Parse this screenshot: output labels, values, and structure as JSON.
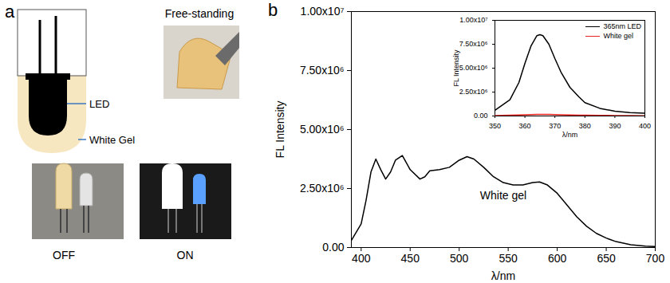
{
  "panel_a": {
    "letter": "a",
    "diagram_labels": [
      "LED",
      "White Gel"
    ],
    "photo_title": "Free-standing",
    "photo_labels": [
      "OFF",
      "ON"
    ]
  },
  "panel_b": {
    "letter": "b"
  },
  "chart_data": [
    {
      "type": "line",
      "color": "#000000",
      "x_label": "λ/nm",
      "y_label": "FL Intensity",
      "x": [
        390,
        400,
        405,
        410,
        415,
        420,
        425,
        430,
        435,
        442,
        450,
        460,
        465,
        470,
        480,
        490,
        500,
        508,
        515,
        525,
        535,
        545,
        555,
        565,
        575,
        582,
        590,
        600,
        610,
        620,
        630,
        640,
        650,
        660,
        675,
        690,
        700
      ],
      "values": [
        300000,
        1000000,
        2000000,
        3200000,
        3750000,
        3300000,
        2900000,
        3200000,
        3700000,
        3900000,
        3300000,
        2900000,
        3000000,
        3250000,
        3300000,
        3400000,
        3700000,
        3850000,
        3750000,
        3400000,
        3000000,
        2750000,
        2650000,
        2650000,
        2750000,
        2780000,
        2650000,
        2300000,
        1800000,
        1300000,
        900000,
        600000,
        400000,
        250000,
        120000,
        60000,
        40000
      ],
      "xlim": [
        390,
        700
      ],
      "xticks": [
        400,
        450,
        500,
        550,
        600,
        650,
        700
      ],
      "ylim": [
        0,
        10000000
      ],
      "yticks": [
        {
          "value": 0,
          "label": "0.00"
        },
        {
          "value": 2500000,
          "label": "2.50x10⁶"
        },
        {
          "value": 5000000,
          "label": "5.00x10⁶"
        },
        {
          "value": 7500000,
          "label": "7.50x10⁶"
        },
        {
          "value": 10000000,
          "label": "1.00x10⁷"
        }
      ],
      "annotations": [
        {
          "text": "White gel",
          "x": 545,
          "y": 2200000
        }
      ]
    },
    {
      "type": "line",
      "legend": "top-right",
      "x_label": "λ/nm",
      "y_label": "FL Intensity",
      "x": [
        350,
        355,
        358,
        360,
        362,
        364,
        365,
        366,
        368,
        370,
        372,
        375,
        378,
        380,
        385,
        390,
        395,
        400
      ],
      "series": [
        {
          "name": "365nm LED",
          "color": "#000000",
          "values": [
            600000,
            1700000,
            3500000,
            5500000,
            7300000,
            8400000,
            8500000,
            8400000,
            7500000,
            6000000,
            4600000,
            3000000,
            2000000,
            1400000,
            800000,
            500000,
            350000,
            300000
          ]
        },
        {
          "name": "White gel",
          "color": "#e8231f",
          "values": [
            50000,
            90000,
            110000,
            120000,
            140000,
            160000,
            170000,
            170000,
            160000,
            150000,
            130000,
            110000,
            90000,
            80000,
            60000,
            50000,
            40000,
            30000
          ]
        }
      ],
      "xlim": [
        350,
        400
      ],
      "xticks": [
        350,
        360,
        370,
        380,
        390,
        400
      ],
      "ylim": [
        0,
        10000000
      ],
      "yticks": [
        {
          "value": 0,
          "label": "0.00"
        },
        {
          "value": 2500000,
          "label": "2.50x10⁶"
        },
        {
          "value": 5000000,
          "label": "5.00x10⁶"
        },
        {
          "value": 7500000,
          "label": "7.50x10⁶"
        },
        {
          "value": 10000000,
          "label": "1.00x10⁷"
        }
      ]
    }
  ]
}
